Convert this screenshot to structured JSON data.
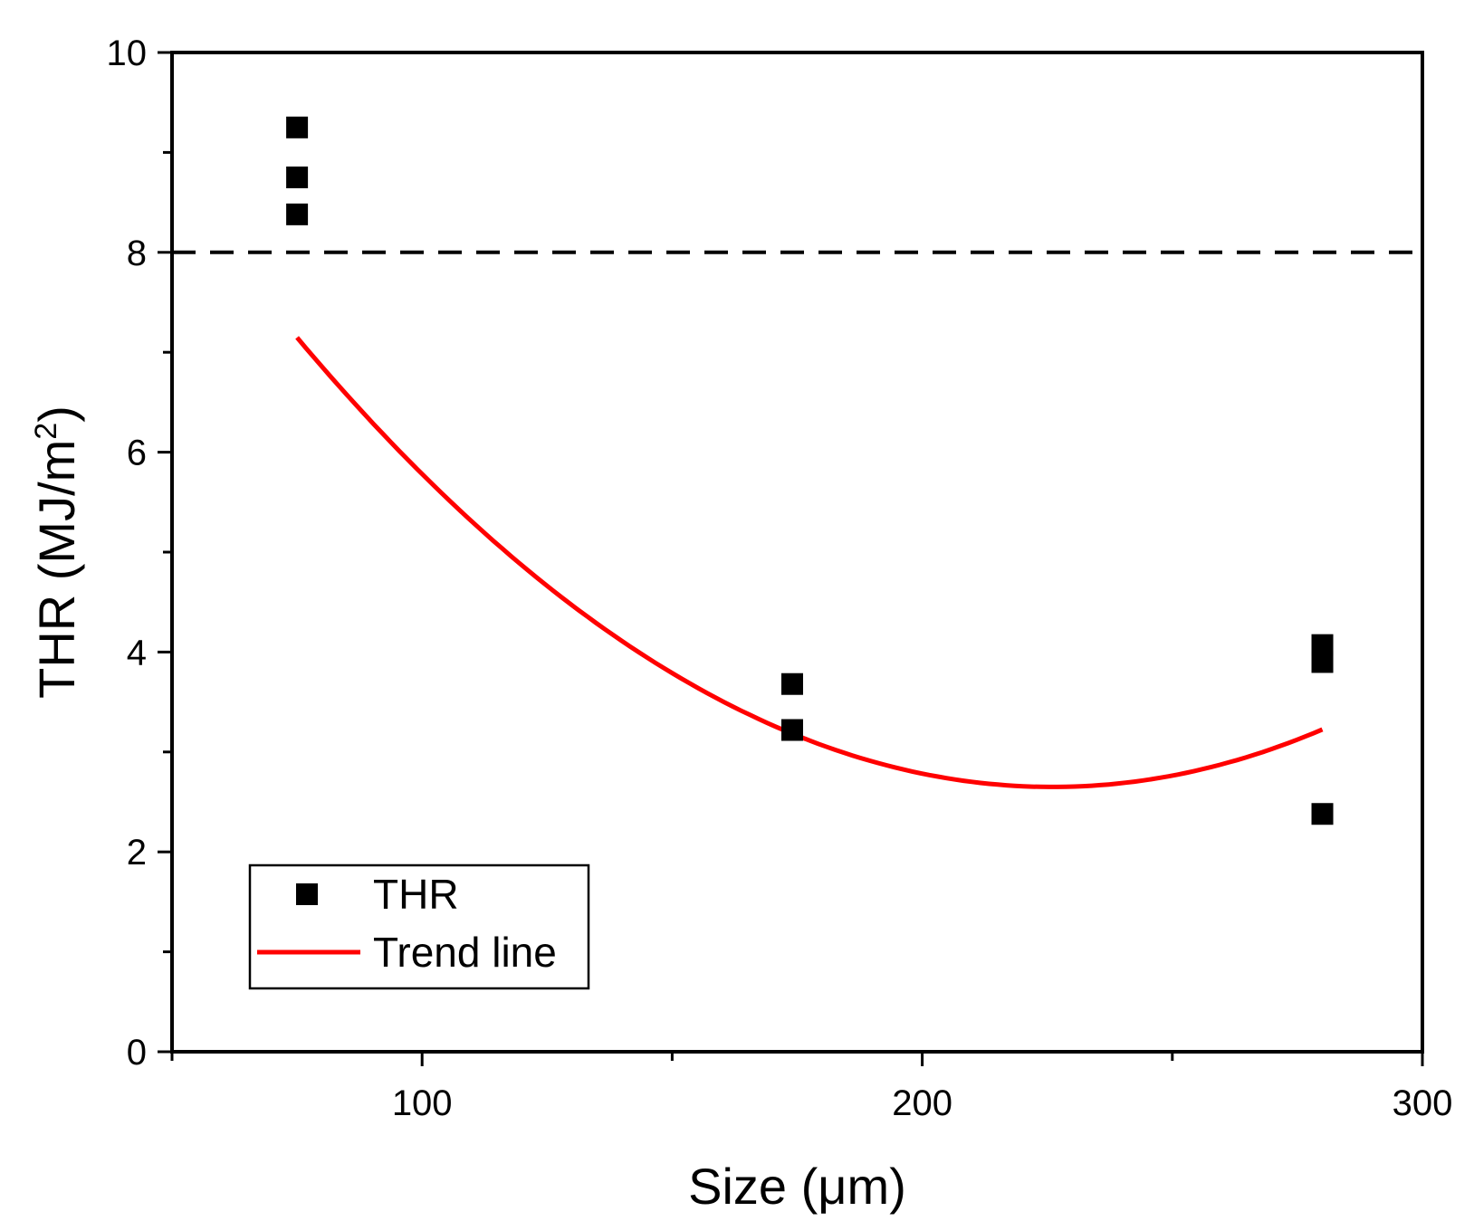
{
  "chart_data": {
    "type": "scatter",
    "title": "",
    "xlabel": "Size (μm)",
    "ylabel_main": "THR (MJ/m",
    "ylabel_sup": "2",
    "ylabel_close": ")",
    "xlim": [
      50,
      300
    ],
    "ylim": [
      0,
      10
    ],
    "x_ticks": [
      {
        "value": 100,
        "label": "100"
      },
      {
        "value": 200,
        "label": "200"
      },
      {
        "value": 300,
        "label": "300"
      }
    ],
    "x_minor_ticks": [
      50,
      150,
      250
    ],
    "y_ticks": [
      {
        "value": 0,
        "label": "0"
      },
      {
        "value": 2,
        "label": "2"
      },
      {
        "value": 4,
        "label": "4"
      },
      {
        "value": 6,
        "label": "6"
      },
      {
        "value": 8,
        "label": "8"
      },
      {
        "value": 10,
        "label": "10"
      }
    ],
    "y_minor_ticks": [
      1,
      3,
      5,
      7,
      9
    ],
    "reference_line": {
      "y": 8,
      "style": "dashed",
      "color": "#000000"
    },
    "series": [
      {
        "name": "THR",
        "kind": "scatter",
        "marker": "square",
        "color": "#000000",
        "x": [
          75,
          75,
          75,
          174,
          174,
          280,
          280,
          280
        ],
        "y": [
          9.25,
          8.75,
          8.38,
          3.68,
          3.22,
          4.07,
          3.9,
          2.38
        ]
      },
      {
        "name": "Trend line",
        "kind": "line",
        "color": "#ff0000",
        "equation": "y = 0.00019725*(x-226)^2 + 2.65",
        "x_range": [
          75,
          280
        ],
        "vertex": {
          "x": 226,
          "y": 2.65
        }
      }
    ],
    "legend": {
      "position": "bottom-left",
      "entries": [
        {
          "label": "THR",
          "symbol": "square"
        },
        {
          "label": "Trend line",
          "symbol": "line"
        }
      ]
    }
  }
}
